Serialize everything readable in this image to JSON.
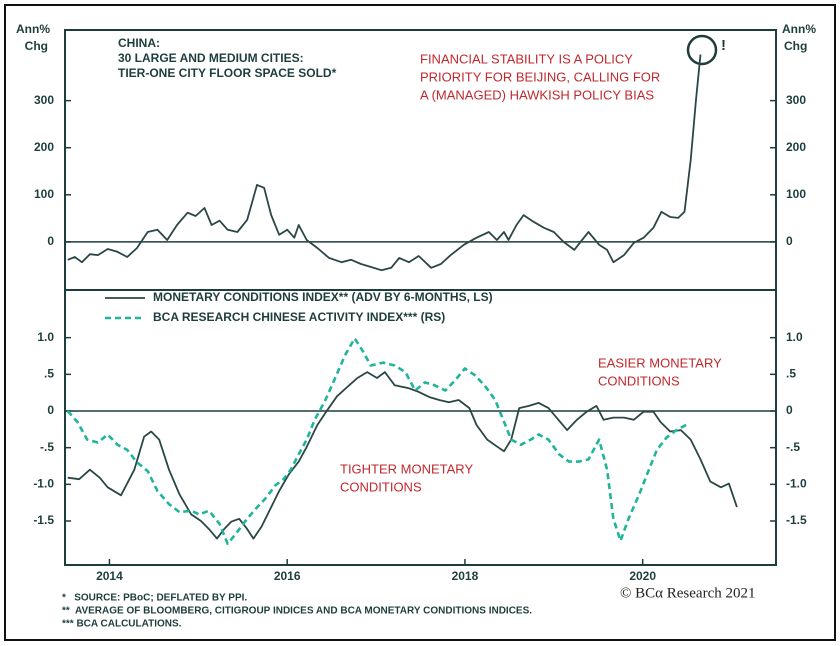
{
  "chart_data": [
    {
      "type": "line",
      "title": [
        "CHINA:",
        "30 LARGE AND MEDIUM CITIES:",
        "TIER-ONE CITY FLOOR SPACE SOLD*"
      ],
      "annotation": [
        "FINANCIAL STABILITY IS A POLICY",
        "PRIORITY FOR BEIJING, CALLING FOR",
        "A (MANAGED) HAWKISH POLICY BIAS"
      ],
      "marker_text": "!",
      "y_label": [
        "Ann%",
        "Chg"
      ],
      "xlim": [
        2013.5,
        2021.5
      ],
      "ylim": [
        -100,
        450
      ],
      "yticks": [
        0,
        100,
        200,
        300
      ],
      "series": [
        {
          "color": "#2b4646",
          "style": "solid",
          "x": [
            2013.53,
            2013.61,
            2013.69,
            2013.78,
            2013.87,
            2013.98,
            2014.09,
            2014.2,
            2014.31,
            2014.43,
            2014.54,
            2014.65,
            2014.76,
            2014.88,
            2014.97,
            2015.07,
            2015.15,
            2015.24,
            2015.33,
            2015.44,
            2015.55,
            2015.66,
            2015.74,
            2015.82,
            2015.91,
            2016.0,
            2016.08,
            2016.13,
            2016.22,
            2016.34,
            2016.47,
            2016.61,
            2016.72,
            2016.83,
            2016.94,
            2017.06,
            2017.17,
            2017.26,
            2017.37,
            2017.48,
            2017.62,
            2017.73,
            2017.84,
            2017.99,
            2018.13,
            2018.27,
            2018.36,
            2018.44,
            2018.49,
            2018.58,
            2018.66,
            2018.77,
            2018.89,
            2019.0,
            2019.11,
            2019.23,
            2019.3,
            2019.39,
            2019.51,
            2019.6,
            2019.67,
            2019.79,
            2019.9,
            2020.01,
            2020.12,
            2020.21,
            2020.31,
            2020.4,
            2020.47,
            2020.54,
            2020.6,
            2020.65
          ],
          "values": [
            -38,
            -32,
            -43,
            -26,
            -28,
            -15,
            -21,
            -32,
            -13,
            21,
            26,
            4,
            36,
            62,
            55,
            72,
            36,
            45,
            26,
            21,
            47,
            121,
            115,
            57,
            15,
            26,
            9,
            36,
            4,
            -13,
            -34,
            -43,
            -38,
            -47,
            -53,
            -60,
            -55,
            -34,
            -43,
            -30,
            -55,
            -47,
            -28,
            -6,
            9,
            21,
            4,
            21,
            4,
            36,
            57,
            43,
            30,
            21,
            0,
            -17,
            0,
            21,
            -6,
            -17,
            -43,
            -28,
            -2,
            9,
            30,
            64,
            53,
            51,
            64,
            174,
            302,
            398
          ]
        }
      ]
    },
    {
      "type": "line",
      "legend": true,
      "annotations": [
        [
          "EASIER MONETARY",
          "CONDITIONS"
        ],
        [
          "TIGHTER MONETARY",
          "CONDITIONS"
        ]
      ],
      "xlim": [
        2013.5,
        2021.5
      ],
      "xticks": [
        2014,
        2016,
        2018,
        2020
      ],
      "ylim": [
        -2.1,
        1.65
      ],
      "yticks": [
        {
          "value": 1,
          "label": "1.0"
        },
        {
          "value": 0.5,
          "label": ".5"
        },
        0,
        {
          "value": -0.5,
          "label": "-.5"
        },
        {
          "value": -1,
          "label": "-1.0"
        },
        {
          "value": -1.5,
          "label": "-1.5"
        }
      ],
      "series": [
        {
          "name": "MONETARY CONDITIONS INDEX** (ADV BY 6-MONTHS, LS)",
          "color": "#2b4646",
          "style": "solid",
          "x": [
            2013.53,
            2013.66,
            2013.78,
            2013.89,
            2013.98,
            2014.13,
            2014.28,
            2014.39,
            2014.47,
            2014.56,
            2014.67,
            2014.79,
            2014.92,
            2015.03,
            2015.12,
            2015.21,
            2015.29,
            2015.37,
            2015.46,
            2015.55,
            2015.62,
            2015.71,
            2015.82,
            2015.91,
            2016.02,
            2016.13,
            2016.22,
            2016.34,
            2016.45,
            2016.56,
            2016.67,
            2016.79,
            2016.9,
            2017.01,
            2017.1,
            2017.21,
            2017.37,
            2017.48,
            2017.6,
            2017.71,
            2017.82,
            2017.93,
            2018.05,
            2018.13,
            2018.25,
            2018.38,
            2018.44,
            2018.52,
            2018.61,
            2018.72,
            2018.83,
            2018.94,
            2019.03,
            2019.15,
            2019.26,
            2019.37,
            2019.48,
            2019.56,
            2019.67,
            2019.79,
            2019.9,
            2020.01,
            2020.12,
            2020.2,
            2020.31,
            2020.43,
            2020.54,
            2020.65,
            2020.76,
            2020.88,
            2020.97,
            2021.06
          ],
          "values": [
            -0.91,
            -0.93,
            -0.8,
            -0.91,
            -1.04,
            -1.15,
            -0.8,
            -0.35,
            -0.28,
            -0.39,
            -0.8,
            -1.14,
            -1.41,
            -1.5,
            -1.61,
            -1.74,
            -1.61,
            -1.51,
            -1.47,
            -1.61,
            -1.74,
            -1.58,
            -1.31,
            -1.09,
            -0.86,
            -0.69,
            -0.49,
            -0.19,
            0.01,
            0.2,
            0.32,
            0.45,
            0.53,
            0.45,
            0.53,
            0.35,
            0.31,
            0.26,
            0.19,
            0.15,
            0.12,
            0.15,
            0.04,
            -0.19,
            -0.39,
            -0.5,
            -0.55,
            -0.39,
            0.04,
            0.07,
            0.11,
            0.04,
            -0.09,
            -0.26,
            -0.12,
            -0.01,
            0.07,
            -0.12,
            -0.09,
            -0.09,
            -0.12,
            -0.01,
            -0.01,
            -0.15,
            -0.28,
            -0.26,
            -0.39,
            -0.66,
            -0.96,
            -1.04,
            -0.99,
            -1.31
          ]
        },
        {
          "name": "BCA RESEARCH CHINESE ACTIVITY INDEX*** (RS)",
          "color": "#1fb59a",
          "style": "dashed",
          "x": [
            2013.53,
            2013.64,
            2013.75,
            2013.87,
            2013.98,
            2014.09,
            2014.2,
            2014.31,
            2014.43,
            2014.54,
            2014.67,
            2014.79,
            2014.92,
            2015.01,
            2015.12,
            2015.24,
            2015.33,
            2015.42,
            2015.53,
            2015.64,
            2015.75,
            2015.87,
            2015.96,
            2016.04,
            2016.13,
            2016.22,
            2016.31,
            2016.43,
            2016.54,
            2016.65,
            2016.76,
            2016.85,
            2016.94,
            2017.08,
            2017.21,
            2017.33,
            2017.44,
            2017.55,
            2017.66,
            2017.78,
            2017.89,
            2018.0,
            2018.11,
            2018.22,
            2018.34,
            2018.43,
            2018.52,
            2018.63,
            2018.74,
            2018.83,
            2018.94,
            2019.06,
            2019.17,
            2019.28,
            2019.39,
            2019.51,
            2019.6,
            2019.67,
            2019.75,
            2019.84,
            2019.96,
            2020.07,
            2020.16,
            2020.27,
            2020.38,
            2020.49
          ],
          "values": [
            0,
            -0.15,
            -0.39,
            -0.43,
            -0.32,
            -0.46,
            -0.53,
            -0.7,
            -0.82,
            -1.09,
            -1.27,
            -1.38,
            -1.36,
            -1.41,
            -1.36,
            -1.54,
            -1.81,
            -1.68,
            -1.5,
            -1.34,
            -1.2,
            -1.01,
            -0.93,
            -0.8,
            -0.59,
            -0.39,
            -0.12,
            0.15,
            0.45,
            0.76,
            0.99,
            0.82,
            0.62,
            0.66,
            0.62,
            0.53,
            0.28,
            0.39,
            0.35,
            0.28,
            0.42,
            0.58,
            0.49,
            0.35,
            0.15,
            -0.12,
            -0.39,
            -0.46,
            -0.39,
            -0.32,
            -0.39,
            -0.59,
            -0.69,
            -0.69,
            -0.66,
            -0.39,
            -0.8,
            -1.47,
            -1.77,
            -1.47,
            -1.14,
            -0.8,
            -0.53,
            -0.36,
            -0.26,
            -0.19
          ]
        }
      ]
    }
  ],
  "footer": {
    "notes": [
      "*   SOURCE: PBoC; DEFLATED BY PPI.",
      "**  AVERAGE OF BLOOMBERG, CITIGROUP INDICES AND BCA MONETARY CONDITIONS INDICES.",
      "*** BCA CALCULATIONS."
    ],
    "credit": "© BCα Research 2021"
  }
}
